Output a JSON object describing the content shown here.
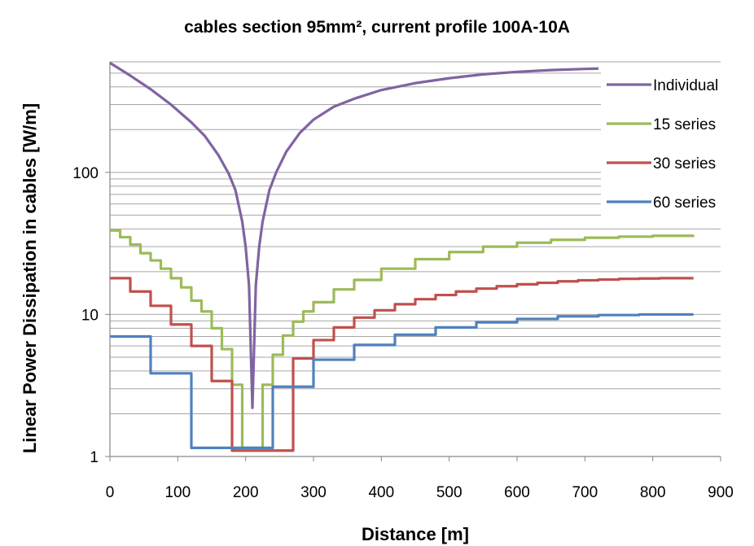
{
  "chart_data": {
    "type": "line",
    "title": "cables section 95mm², current profile 100A-10A",
    "xlabel": "Distance [m]",
    "ylabel": "Linear Power Dissipation in cables [W/m]",
    "xlim": [
      0,
      900
    ],
    "ylim": [
      1,
      600
    ],
    "y_scale": "log",
    "x_ticks": [
      "0",
      "100",
      "200",
      "300",
      "400",
      "500",
      "600",
      "700",
      "800",
      "900"
    ],
    "y_ticks": [
      "1",
      "10",
      "100"
    ],
    "grid": "horizontal",
    "legend_position": "top-right",
    "series": [
      {
        "name": "Individual",
        "color": "#8064A2",
        "x": [
          0,
          30,
          60,
          90,
          120,
          140,
          160,
          175,
          185,
          195,
          200,
          205,
          210,
          215,
          220,
          225,
          235,
          245,
          260,
          280,
          300,
          330,
          360,
          400,
          450,
          500,
          550,
          600,
          650,
          700,
          720
        ],
        "y": [
          590,
          480,
          385,
          300,
          225,
          180,
          132,
          98,
          75,
          45,
          30,
          16,
          2.2,
          16,
          30,
          45,
          75,
          100,
          140,
          190,
          235,
          290,
          330,
          380,
          425,
          460,
          490,
          510,
          525,
          535,
          538
        ]
      },
      {
        "name": "15 series",
        "color": "#9BBB59",
        "x": [
          0,
          15,
          30,
          45,
          60,
          75,
          90,
          105,
          120,
          135,
          150,
          165,
          180,
          195,
          210,
          225,
          240,
          255,
          270,
          285,
          300,
          330,
          360,
          400,
          450,
          500,
          550,
          600,
          650,
          700,
          750,
          800,
          860
        ],
        "y": [
          39,
          35,
          31,
          27,
          24,
          21,
          18,
          15.5,
          12.5,
          10.5,
          8,
          5.7,
          3.2,
          1.15,
          1.15,
          3.2,
          5.2,
          7.1,
          8.9,
          10.5,
          12.2,
          15,
          17.5,
          21,
          24.5,
          27.5,
          30,
          32,
          33.5,
          34.7,
          35.3,
          35.8,
          36
        ]
      },
      {
        "name": "30 series",
        "color": "#C0504D",
        "x": [
          0,
          30,
          60,
          90,
          120,
          150,
          180,
          210,
          240,
          270,
          300,
          330,
          360,
          390,
          420,
          450,
          480,
          510,
          540,
          570,
          600,
          630,
          660,
          690,
          720,
          750,
          780,
          810,
          860
        ],
        "y": [
          18,
          14.5,
          11.5,
          8.5,
          6,
          3.4,
          1.1,
          1.1,
          1.1,
          4.9,
          6.6,
          8.1,
          9.5,
          10.7,
          11.8,
          12.8,
          13.7,
          14.5,
          15.2,
          15.8,
          16.3,
          16.7,
          17.1,
          17.4,
          17.6,
          17.8,
          17.9,
          18,
          18
        ]
      },
      {
        "name": "60 series",
        "color": "#4F81BD",
        "x": [
          0,
          60,
          120,
          180,
          240,
          300,
          360,
          420,
          480,
          540,
          600,
          660,
          720,
          780,
          860
        ],
        "y": [
          7,
          3.85,
          1.15,
          1.15,
          3.1,
          4.8,
          6.1,
          7.2,
          8.1,
          8.8,
          9.3,
          9.7,
          9.9,
          10,
          10
        ]
      }
    ]
  }
}
